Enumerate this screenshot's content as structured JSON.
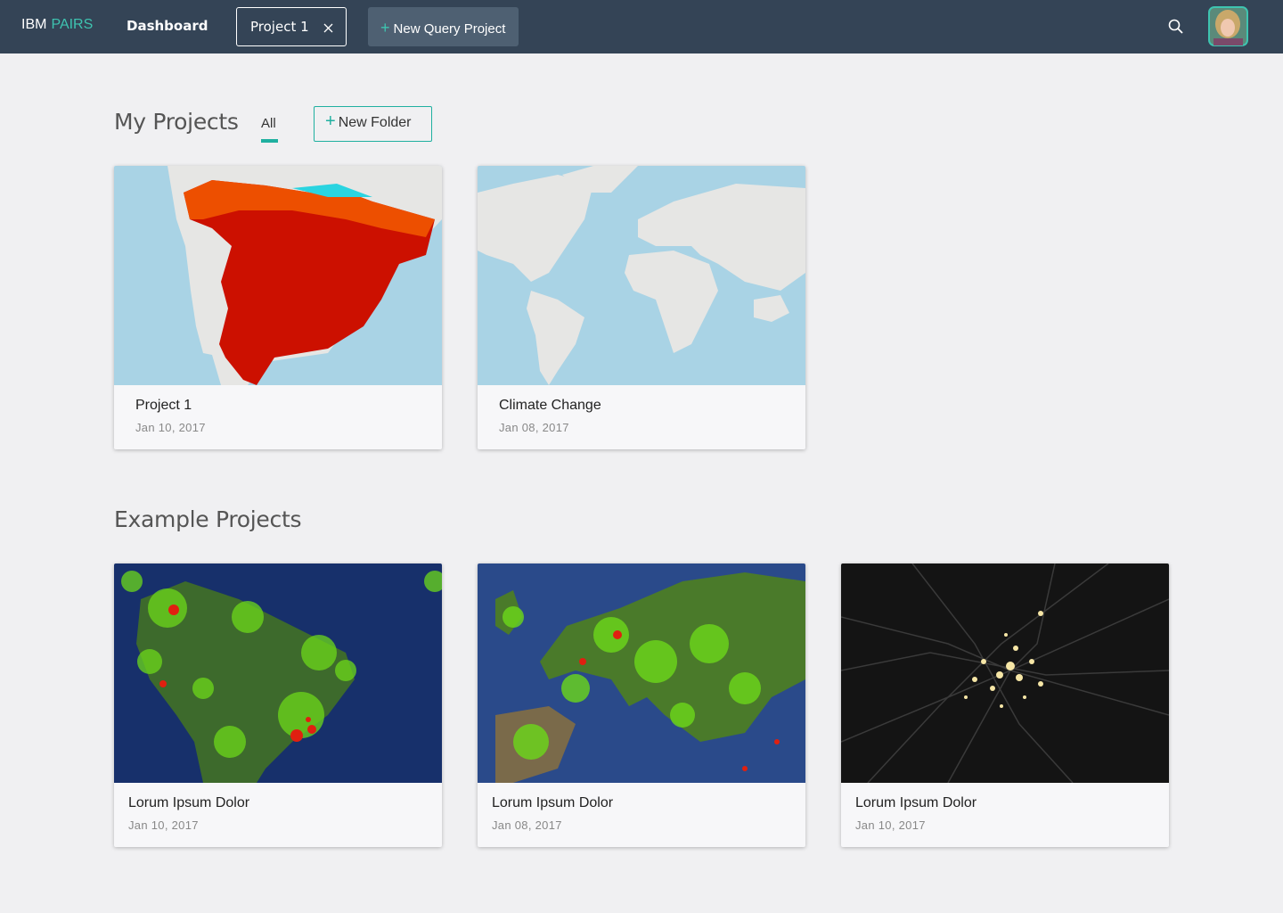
{
  "nav": {
    "brand": "IBM",
    "product": "PAIRS",
    "dashboard": "Dashboard",
    "tab": "Project 1",
    "new_query": "New Query Project"
  },
  "my_projects": {
    "title": "My Projects",
    "filter": "All",
    "new_folder": "New Folder",
    "cards": [
      {
        "title": "Project 1",
        "date": "Jan 10, 2017"
      },
      {
        "title": "Climate Change",
        "date": "Jan 08, 2017"
      }
    ]
  },
  "example_projects": {
    "title": "Example Projects",
    "cards": [
      {
        "title": "Lorum Ipsum Dolor",
        "date": "Jan 10, 2017"
      },
      {
        "title": "Lorum Ipsum Dolor",
        "date": "Jan 08, 2017"
      },
      {
        "title": "Lorum Ipsum Dolor",
        "date": "Jan 10, 2017"
      }
    ]
  }
}
